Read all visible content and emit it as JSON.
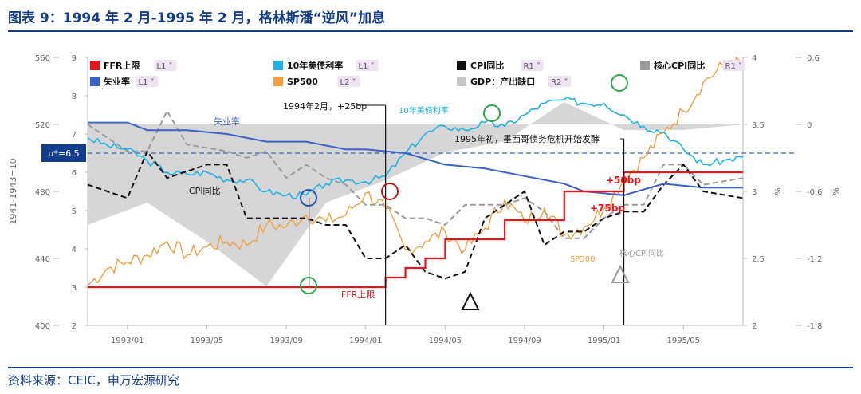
{
  "title": "图表 9：1994 年 2 月-1995 年 2 月，格林斯潘“逆风”加息",
  "source": "资料来源：CEIC，申万宏源研究",
  "colors": {
    "ffr": "#e8141c",
    "unemp": "#3b62c8",
    "t10": "#1fb2e8",
    "sp500": "#f0a040",
    "cpi": "#111111",
    "gdp": "#c8c8c8",
    "core": "#9a9a9a",
    "title": "#123d8c"
  },
  "chart_data": {
    "type": "line",
    "x_ticks": [
      "1993/01",
      "1993/05",
      "1993/09",
      "1994/01",
      "1994/05",
      "1994/09",
      "1995/01",
      "1995/05"
    ],
    "x_range": [
      "1992/11",
      "1995/08"
    ],
    "axes": {
      "L1": {
        "range": [
          2,
          9
        ],
        "ticks": [
          "2",
          "3",
          "4",
          "5",
          "6",
          "7",
          "8",
          "9"
        ]
      },
      "L2": {
        "range": [
          400,
          560
        ],
        "ticks": [
          "400",
          "440",
          "480",
          "520",
          "560"
        ],
        "label": "1941-1943=10"
      },
      "R1": {
        "range": [
          2,
          4
        ],
        "ticks": [
          "2",
          "2.5",
          "3",
          "3.5",
          "4"
        ],
        "unit": "%"
      },
      "R2": {
        "range": [
          -1.8,
          0.6
        ],
        "ticks": [
          "-1.8",
          "-1.2",
          "-0.6",
          "0",
          "0.6"
        ],
        "unit": "%"
      }
    },
    "legend": [
      {
        "name": "FFR上限",
        "axis": "L1",
        "color": "#e8141c",
        "kind": "line"
      },
      {
        "name": "失业率",
        "axis": "L1",
        "color": "#3b62c8",
        "kind": "line"
      },
      {
        "name": "10年美债利率",
        "axis": "L1",
        "color": "#1fb2e8",
        "kind": "line"
      },
      {
        "name": "SP500",
        "axis": "L2",
        "color": "#f0a040",
        "kind": "line"
      },
      {
        "name": "CPI同比",
        "axis": "R1",
        "color": "#111111",
        "kind": "dash"
      },
      {
        "name": "GDP：产出缺口",
        "axis": "R2",
        "color": "#c8c8c8",
        "kind": "area"
      },
      {
        "name": "核心CPI同比",
        "axis": "R1",
        "color": "#9a9a9a",
        "kind": "dash"
      }
    ],
    "series": [
      {
        "name": "FFR上限",
        "axis": "L1",
        "points": [
          [
            "1992/11",
            3.0
          ],
          [
            "1994/02",
            3.0
          ],
          [
            "1994/02",
            3.25
          ],
          [
            "1994/03",
            3.25
          ],
          [
            "1994/03",
            3.5
          ],
          [
            "1994/04",
            3.5
          ],
          [
            "1994/04",
            3.75
          ],
          [
            "1994/05",
            3.75
          ],
          [
            "1994/05",
            4.25
          ],
          [
            "1994/08",
            4.25
          ],
          [
            "1994/08",
            4.75
          ],
          [
            "1994/11",
            4.75
          ],
          [
            "1994/11",
            5.5
          ],
          [
            "1995/02",
            5.5
          ],
          [
            "1995/02",
            6.0
          ],
          [
            "1995/08",
            6.0
          ]
        ]
      },
      {
        "name": "失业率",
        "axis": "L1",
        "points": [
          [
            "1992/11",
            7.3
          ],
          [
            "1993/01",
            7.3
          ],
          [
            "1993/02",
            7.1
          ],
          [
            "1993/04",
            7.1
          ],
          [
            "1993/06",
            7.0
          ],
          [
            "1993/08",
            6.8
          ],
          [
            "1993/10",
            6.8
          ],
          [
            "1993/12",
            6.6
          ],
          [
            "1994/01",
            6.6
          ],
          [
            "1994/03",
            6.5
          ],
          [
            "1994/05",
            6.2
          ],
          [
            "1994/07",
            6.1
          ],
          [
            "1994/09",
            5.9
          ],
          [
            "1994/11",
            5.7
          ],
          [
            "1994/12",
            5.5
          ],
          [
            "1995/02",
            5.4
          ],
          [
            "1995/04",
            5.7
          ],
          [
            "1995/06",
            5.6
          ],
          [
            "1995/08",
            5.6
          ]
        ]
      },
      {
        "name": "10年美债利率",
        "axis": "L1",
        "points": [
          [
            "1992/11",
            6.9
          ],
          [
            "1992/12",
            6.7
          ],
          [
            "1993/01",
            6.6
          ],
          [
            "1993/02",
            6.3
          ],
          [
            "1993/03",
            6.0
          ],
          [
            "1993/04",
            5.95
          ],
          [
            "1993/05",
            6.0
          ],
          [
            "1993/06",
            5.8
          ],
          [
            "1993/07",
            5.8
          ],
          [
            "1993/08",
            5.5
          ],
          [
            "1993/09",
            5.4
          ],
          [
            "1993/10",
            5.4
          ],
          [
            "1993/11",
            5.7
          ],
          [
            "1993/12",
            5.8
          ],
          [
            "1994/01",
            5.75
          ],
          [
            "1994/02",
            5.9
          ],
          [
            "1994/03",
            6.5
          ],
          [
            "1994/04",
            7.0
          ],
          [
            "1994/05",
            7.2
          ],
          [
            "1994/06",
            7.1
          ],
          [
            "1994/07",
            7.3
          ],
          [
            "1994/08",
            7.2
          ],
          [
            "1994/09",
            7.5
          ],
          [
            "1994/10",
            7.8
          ],
          [
            "1994/11",
            7.9
          ],
          [
            "1994/12",
            7.8
          ],
          [
            "1995/01",
            7.8
          ],
          [
            "1995/02",
            7.5
          ],
          [
            "1995/03",
            7.2
          ],
          [
            "1995/04",
            7.05
          ],
          [
            "1995/05",
            6.6
          ],
          [
            "1995/06",
            6.2
          ],
          [
            "1995/07",
            6.3
          ],
          [
            "1995/08",
            6.4
          ]
        ]
      },
      {
        "name": "SP500",
        "axis": "L2",
        "points": [
          [
            "1992/11",
            424
          ],
          [
            "1992/12",
            434
          ],
          [
            "1993/01",
            438
          ],
          [
            "1993/02",
            442
          ],
          [
            "1993/03",
            450
          ],
          [
            "1993/04",
            442
          ],
          [
            "1993/05",
            447
          ],
          [
            "1993/06",
            450
          ],
          [
            "1993/07",
            448
          ],
          [
            "1993/08",
            460
          ],
          [
            "1993/09",
            459
          ],
          [
            "1993/10",
            466
          ],
          [
            "1993/11",
            462
          ],
          [
            "1993/12",
            466
          ],
          [
            "1994/01",
            479
          ],
          [
            "1994/02",
            470
          ],
          [
            "1994/03",
            445
          ],
          [
            "1994/04",
            450
          ],
          [
            "1994/05",
            456
          ],
          [
            "1994/06",
            445
          ],
          [
            "1994/07",
            458
          ],
          [
            "1994/08",
            475
          ],
          [
            "1994/09",
            462
          ],
          [
            "1994/10",
            470
          ],
          [
            "1994/11",
            454
          ],
          [
            "1994/12",
            459
          ],
          [
            "1995/01",
            470
          ],
          [
            "1995/02",
            487
          ],
          [
            "1995/03",
            500
          ],
          [
            "1995/04",
            515
          ],
          [
            "1995/05",
            528
          ],
          [
            "1995/06",
            545
          ],
          [
            "1995/07",
            555
          ],
          [
            "1995/08",
            557
          ]
        ]
      },
      {
        "name": "CPI同比",
        "axis": "R1",
        "points": [
          [
            "1992/11",
            3.05
          ],
          [
            "1993/01",
            2.95
          ],
          [
            "1993/02",
            3.3
          ],
          [
            "1993/03",
            3.1
          ],
          [
            "1993/05",
            3.2
          ],
          [
            "1993/06",
            3.2
          ],
          [
            "1993/07",
            2.8
          ],
          [
            "1993/09",
            2.8
          ],
          [
            "1993/10",
            2.8
          ],
          [
            "1993/11",
            2.75
          ],
          [
            "1993/12",
            2.75
          ],
          [
            "1994/01",
            2.5
          ],
          [
            "1994/02",
            2.5
          ],
          [
            "1994/03",
            2.6
          ],
          [
            "1994/04",
            2.4
          ],
          [
            "1994/05",
            2.35
          ],
          [
            "1994/06",
            2.4
          ],
          [
            "1994/07",
            2.8
          ],
          [
            "1994/08",
            2.9
          ],
          [
            "1994/09",
            3.0
          ],
          [
            "1994/10",
            2.6
          ],
          [
            "1994/11",
            2.7
          ],
          [
            "1994/12",
            2.7
          ],
          [
            "1995/01",
            2.8
          ],
          [
            "1995/02",
            2.85
          ],
          [
            "1995/03",
            2.85
          ],
          [
            "1995/04",
            3.05
          ],
          [
            "1995/05",
            3.2
          ],
          [
            "1995/06",
            3.0
          ],
          [
            "1995/08",
            2.95
          ]
        ]
      },
      {
        "name": "核心CPI同比",
        "axis": "R1",
        "points": [
          [
            "1992/11",
            3.5
          ],
          [
            "1993/01",
            3.3
          ],
          [
            "1993/02",
            3.3
          ],
          [
            "1993/03",
            3.6
          ],
          [
            "1993/04",
            3.35
          ],
          [
            "1993/06",
            3.3
          ],
          [
            "1993/07",
            3.25
          ],
          [
            "1993/08",
            3.3
          ],
          [
            "1993/09",
            3.1
          ],
          [
            "1993/10",
            3.2
          ],
          [
            "1993/11",
            3.1
          ],
          [
            "1993/12",
            3.05
          ],
          [
            "1994/01",
            2.9
          ],
          [
            "1994/02",
            2.9
          ],
          [
            "1994/03",
            2.8
          ],
          [
            "1994/04",
            2.8
          ],
          [
            "1994/05",
            2.75
          ],
          [
            "1994/06",
            2.9
          ],
          [
            "1994/07",
            2.9
          ],
          [
            "1994/08",
            2.9
          ],
          [
            "1994/09",
            2.95
          ],
          [
            "1994/10",
            2.85
          ],
          [
            "1994/11",
            2.65
          ],
          [
            "1994/12",
            2.65
          ],
          [
            "1995/01",
            2.8
          ],
          [
            "1995/02",
            2.9
          ],
          [
            "1995/03",
            2.9
          ],
          [
            "1995/04",
            3.2
          ],
          [
            "1995/05",
            3.2
          ],
          [
            "1995/06",
            3.05
          ],
          [
            "1995/08",
            3.1
          ]
        ]
      },
      {
        "name": "GDP：产出缺口",
        "axis": "R2",
        "points": [
          [
            "1992/11",
            -0.9
          ],
          [
            "1993/02",
            -0.7
          ],
          [
            "1993/05",
            -1.05
          ],
          [
            "1993/08",
            -1.45
          ],
          [
            "1993/11",
            -0.7
          ],
          [
            "1994/02",
            -0.5
          ],
          [
            "1994/05",
            -0.25
          ],
          [
            "1994/08",
            -0.15
          ],
          [
            "1994/11",
            0.2
          ],
          [
            "1995/02",
            -0.05
          ],
          [
            "1995/05",
            -0.05
          ],
          [
            "1995/08",
            0.0
          ]
        ]
      }
    ],
    "annotations": {
      "u_star": "u*=6.5",
      "note_1994": "1994年2月，+25bp",
      "note_1995": "1995年初，墨西哥债务危机开始发酵",
      "bp50": "+50bp",
      "bp75": "+75bp",
      "label_unemp": "失业率",
      "label_t10": "10年美债利率",
      "label_cpi": "CPI同比",
      "label_ffr": "FFR上限",
      "label_sp": "SP500",
      "label_core": "核心CPI同比"
    },
    "grid": false,
    "legend_position": "top"
  }
}
